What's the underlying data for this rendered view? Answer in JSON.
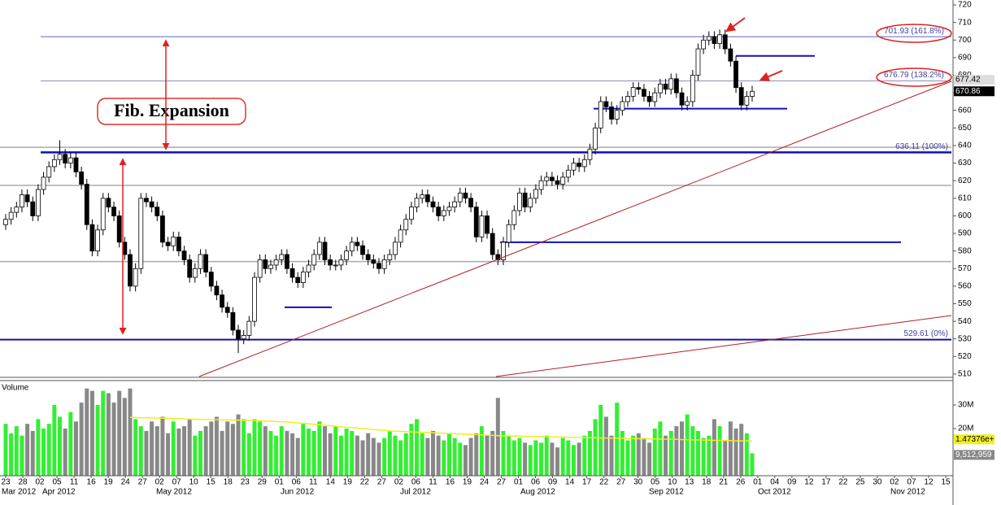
{
  "chart_data": {
    "type": "candlestick",
    "annotation": "Fib.  Expansion",
    "open": [
      595,
      598,
      602,
      605,
      612,
      608,
      600,
      615,
      622,
      628,
      632,
      635,
      630,
      633,
      625,
      618,
      595,
      580,
      592,
      610,
      605,
      600,
      585,
      578,
      560,
      570,
      610,
      608,
      605,
      600,
      585,
      583,
      588,
      580,
      575,
      565,
      570,
      578,
      568,
      560,
      555,
      548,
      545,
      535,
      530,
      532,
      540,
      565,
      575,
      570,
      572,
      575,
      578,
      570,
      565,
      562,
      568,
      572,
      578,
      585,
      575,
      572,
      572,
      575,
      580,
      585,
      583,
      578,
      575,
      573,
      570,
      575,
      578,
      585,
      592,
      598,
      605,
      610,
      612,
      608,
      605,
      600,
      603,
      605,
      608,
      613,
      610,
      605,
      588,
      600,
      590,
      578,
      575,
      585,
      595,
      603,
      613,
      605,
      610,
      615,
      620,
      622,
      620,
      618,
      622,
      626,
      630,
      628,
      632,
      638,
      650,
      665,
      662,
      655,
      660,
      665,
      668,
      673,
      672,
      668,
      665,
      670,
      675,
      672,
      678,
      670,
      663,
      665,
      680,
      695,
      700,
      702,
      698,
      703,
      695,
      688,
      673,
      663,
      668
    ],
    "high": [
      601,
      605,
      608,
      615,
      615,
      611,
      618,
      625,
      631,
      635,
      643,
      638,
      636,
      636,
      628,
      621,
      598,
      595,
      613,
      613,
      608,
      603,
      588,
      581,
      573,
      613,
      613,
      611,
      608,
      603,
      588,
      591,
      591,
      583,
      578,
      573,
      581,
      581,
      571,
      563,
      558,
      551,
      548,
      538,
      535,
      543,
      568,
      578,
      578,
      575,
      578,
      581,
      581,
      573,
      568,
      571,
      575,
      581,
      588,
      588,
      578,
      575,
      578,
      583,
      588,
      588,
      586,
      581,
      578,
      576,
      578,
      581,
      588,
      595,
      601,
      608,
      613,
      615,
      615,
      611,
      608,
      606,
      608,
      611,
      616,
      616,
      613,
      608,
      603,
      603,
      593,
      581,
      588,
      598,
      606,
      616,
      616,
      613,
      618,
      623,
      625,
      625,
      623,
      625,
      629,
      633,
      633,
      635,
      641,
      653,
      668,
      668,
      665,
      663,
      668,
      671,
      676,
      676,
      675,
      671,
      673,
      678,
      678,
      681,
      681,
      673,
      668,
      683,
      698,
      703,
      705,
      705,
      706,
      706,
      698,
      691,
      676,
      671,
      674
    ],
    "low": [
      592,
      595,
      599,
      602,
      605,
      597,
      597,
      612,
      619,
      625,
      629,
      627,
      627,
      622,
      615,
      592,
      577,
      577,
      589,
      602,
      597,
      582,
      575,
      557,
      557,
      567,
      605,
      602,
      597,
      582,
      580,
      580,
      577,
      572,
      562,
      562,
      567,
      565,
      557,
      552,
      545,
      542,
      532,
      522,
      527,
      529,
      537,
      562,
      567,
      567,
      569,
      572,
      567,
      562,
      559,
      559,
      565,
      569,
      575,
      572,
      569,
      569,
      569,
      572,
      577,
      580,
      575,
      572,
      570,
      567,
      567,
      572,
      575,
      582,
      589,
      595,
      602,
      607,
      605,
      602,
      597,
      597,
      600,
      602,
      605,
      607,
      602,
      585,
      585,
      587,
      575,
      572,
      572,
      582,
      592,
      600,
      602,
      602,
      607,
      612,
      617,
      617,
      615,
      615,
      619,
      623,
      625,
      625,
      629,
      635,
      647,
      659,
      652,
      652,
      657,
      662,
      665,
      669,
      665,
      662,
      662,
      667,
      669,
      669,
      667,
      660,
      660,
      662,
      677,
      692,
      697,
      695,
      695,
      692,
      685,
      670,
      660,
      660,
      665
    ],
    "close": [
      598,
      602,
      605,
      612,
      608,
      600,
      615,
      622,
      628,
      632,
      635,
      630,
      633,
      625,
      618,
      595,
      580,
      592,
      610,
      605,
      600,
      585,
      578,
      560,
      570,
      610,
      608,
      605,
      600,
      585,
      583,
      588,
      580,
      575,
      565,
      570,
      578,
      568,
      560,
      555,
      548,
      545,
      535,
      530,
      532,
      540,
      565,
      575,
      570,
      572,
      575,
      578,
      570,
      565,
      562,
      568,
      572,
      578,
      585,
      575,
      572,
      572,
      575,
      580,
      585,
      583,
      578,
      575,
      573,
      570,
      575,
      578,
      585,
      592,
      598,
      605,
      610,
      612,
      608,
      605,
      600,
      603,
      605,
      608,
      613,
      610,
      605,
      588,
      600,
      590,
      578,
      575,
      585,
      595,
      603,
      613,
      605,
      610,
      615,
      620,
      622,
      620,
      618,
      622,
      626,
      630,
      628,
      632,
      638,
      650,
      665,
      662,
      655,
      660,
      665,
      668,
      673,
      672,
      668,
      665,
      670,
      675,
      672,
      678,
      670,
      663,
      665,
      680,
      695,
      700,
      702,
      698,
      703,
      695,
      688,
      673,
      663,
      668,
      670.86
    ],
    "up_color": "#ffffff",
    "down_color": "#000000",
    "ylim": [
      508.6,
      722.8
    ],
    "yticks": [
      510,
      520,
      530,
      540,
      550,
      560,
      570,
      580,
      590,
      600,
      610,
      620,
      630,
      640,
      650,
      660,
      670,
      680,
      690,
      700,
      710,
      720
    ],
    "fib_levels": [
      {
        "value": 701.93,
        "label": "701.93 (161.8%)"
      },
      {
        "value": 676.79,
        "label": "676.79 (138.2%)"
      },
      {
        "value": 636.11,
        "label": "636.11 (100%)"
      },
      {
        "value": 529.61,
        "label": "529.61 (0%)"
      }
    ],
    "support_levels": [
      548,
      585,
      661,
      691
    ],
    "gray_levels": [
      639,
      617.3,
      574
    ],
    "price_marker": 677.42,
    "categories": [
      "23",
      "28",
      "02",
      "05",
      "11",
      "16",
      "19",
      "24",
      "27",
      "02",
      "07",
      "10",
      "15",
      "18",
      "23",
      "29",
      "01",
      "06",
      "11",
      "14",
      "19",
      "22",
      "27",
      "02",
      "06",
      "11",
      "16",
      "19",
      "24",
      "27",
      "01",
      "06",
      "09",
      "14",
      "17",
      "22",
      "27",
      "30",
      "05",
      "10",
      "13",
      "18",
      "21",
      "26",
      "01",
      "04",
      "09",
      "12",
      "17",
      "22",
      "25",
      "30",
      "02",
      "07",
      "12",
      "15"
    ],
    "months": [
      "Mar 2012",
      "Apr 2012",
      "May 2012",
      "Jun 2012",
      "Jul 2012",
      "Aug 2012",
      "Sep 2012",
      "Oct 2012",
      "Nov 2012"
    ],
    "volume": {
      "type": "bar",
      "label": "Volume",
      "values": [
        22,
        18,
        21,
        17,
        22,
        19,
        24,
        20,
        22,
        30,
        25,
        20,
        27,
        23,
        31,
        37,
        36,
        30,
        36,
        35,
        31,
        36,
        33,
        37,
        24,
        21,
        19,
        23,
        21,
        25,
        18,
        23,
        20,
        21,
        24,
        17,
        19,
        21,
        23,
        25,
        19,
        23,
        22,
        26,
        24,
        18,
        24,
        23,
        21,
        19,
        17,
        21,
        19,
        18,
        16,
        22,
        20,
        19,
        23,
        21,
        18,
        21,
        17,
        20,
        19,
        17,
        15,
        18,
        16,
        14,
        16,
        19,
        17,
        15,
        18,
        22,
        24,
        18,
        16,
        19,
        17,
        15,
        18,
        16,
        14,
        13,
        16,
        18,
        21,
        17,
        19,
        33,
        19,
        17,
        15,
        16,
        14,
        13,
        15,
        14,
        17,
        14,
        12,
        16,
        15,
        13,
        14,
        17,
        19,
        24,
        30,
        25,
        17,
        31,
        19,
        15,
        17,
        18,
        16,
        14,
        20,
        23,
        17,
        19,
        21,
        23,
        26,
        21,
        19,
        16,
        17,
        24,
        21,
        15,
        23,
        20,
        22,
        18,
        9.512959
      ],
      "up_color": "#33ee33",
      "down_color": "#888888",
      "ma": {
        "color": "#eeee22",
        "label": "1.47376e+",
        "values": [
          null,
          null,
          null,
          null,
          null,
          null,
          null,
          null,
          null,
          null,
          null,
          null,
          null,
          null,
          null,
          null,
          null,
          null,
          null,
          null,
          null,
          null,
          null,
          24.8,
          24.7,
          24.6,
          24.6,
          24.5,
          24.4,
          24.4,
          24.3,
          24.2,
          24.2,
          24.1,
          24.0,
          24.0,
          23.9,
          23.9,
          23.8,
          23.8,
          23.7,
          23.7,
          23.6,
          23.6,
          23.5,
          23.5,
          23.4,
          23.3,
          23.2,
          23.1,
          23.0,
          22.9,
          22.8,
          22.6,
          22.4,
          22.2,
          22.0,
          21.8,
          21.6,
          21.4,
          21.2,
          21.0,
          20.8,
          20.6,
          20.4,
          20.2,
          20.0,
          19.8,
          19.6,
          19.4,
          19.2,
          19.0,
          18.9,
          18.8,
          18.7,
          18.6,
          18.5,
          18.4,
          18.3,
          18.2,
          18.1,
          18.0,
          17.9,
          17.8,
          17.7,
          17.6,
          17.5,
          17.4,
          17.3,
          17.2,
          17.1,
          17.0,
          16.9,
          16.9,
          16.8,
          16.8,
          16.7,
          16.7,
          16.6,
          16.6,
          16.5,
          16.5,
          16.4,
          16.4,
          16.3,
          16.3,
          16.2,
          16.2,
          16.1,
          16.1,
          16.0,
          16.0,
          16.0,
          15.9,
          15.9,
          15.8,
          15.8,
          15.7,
          15.7,
          15.6,
          15.6,
          15.5,
          15.5,
          15.4,
          15.4,
          15.3,
          15.3,
          15.2,
          15.2,
          15.1,
          15.1,
          15.0,
          15.0,
          14.9,
          14.9,
          14.8,
          14.8,
          14.8,
          14.7376
        ]
      },
      "last_label": "9,512,959",
      "ylim": [
        0,
        40
      ],
      "yticks": [
        {
          "value": 20,
          "label": "20M"
        },
        {
          "value": 30,
          "label": "30M"
        }
      ]
    }
  }
}
